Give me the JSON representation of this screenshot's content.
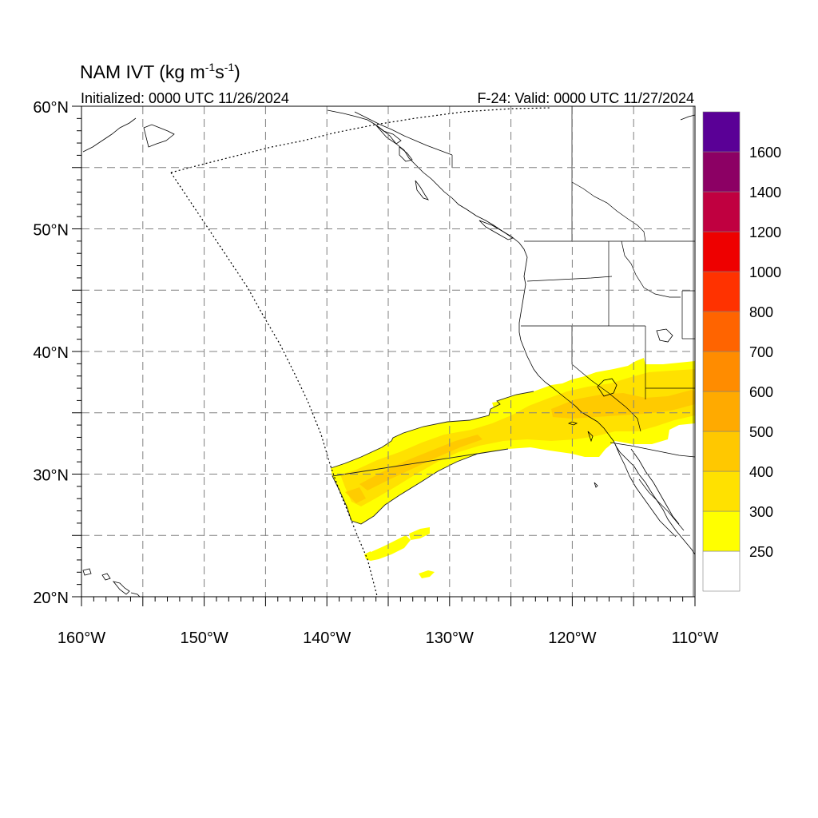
{
  "title": {
    "main": "NAM IVT (kg m",
    "sup1": "-1",
    "mid": "s",
    "sup2": "-1",
    "close": ")"
  },
  "subtitle_left": "Initialized: 0000 UTC 11/26/2024",
  "subtitle_right": "F-24: Valid: 0000 UTC 11/27/2024",
  "map": {
    "lon_range": [
      -160,
      -110
    ],
    "lat_range": [
      20,
      60
    ],
    "lon_labels": [
      {
        "lon": -160,
        "text": "160°W"
      },
      {
        "lon": -150,
        "text": "150°W"
      },
      {
        "lon": -140,
        "text": "140°W"
      },
      {
        "lon": -130,
        "text": "130°W"
      },
      {
        "lon": -120,
        "text": "120°W"
      },
      {
        "lon": -110,
        "text": "110°W"
      }
    ],
    "lat_labels": [
      {
        "lat": 60,
        "text": "60°N"
      },
      {
        "lat": 50,
        "text": "50°N"
      },
      {
        "lat": 40,
        "text": "40°N"
      },
      {
        "lat": 30,
        "text": "30°N"
      },
      {
        "lat": 20,
        "text": "20°N"
      }
    ],
    "grid_lons": [
      -155,
      -150,
      -145,
      -140,
      -135,
      -130,
      -125,
      -120,
      -115
    ],
    "grid_lats": [
      55,
      50,
      45,
      40,
      35,
      30,
      25
    ],
    "grid_style": "dashed"
  },
  "colorbar": {
    "labels": [
      "250",
      "300",
      "400",
      "500",
      "600",
      "700",
      "800",
      "1000",
      "1200",
      "1400",
      "1600"
    ],
    "colors": [
      "#ffffff",
      "#ffff00",
      "#ffe100",
      "#ffc800",
      "#ffaa00",
      "#ff8c00",
      "#ff6400",
      "#ff3200",
      "#ee0000",
      "#c00040",
      "#8c0064",
      "#5a0096"
    ]
  },
  "ivt_regions": [
    {
      "level": "250",
      "color": "#ffff00"
    },
    {
      "level": "300",
      "color": "#ffe100"
    },
    {
      "level": "400",
      "color": "#ffc800"
    }
  ]
}
